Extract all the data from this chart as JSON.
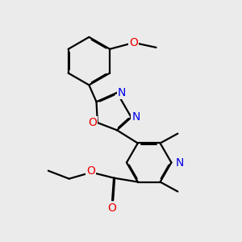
{
  "bg_color": "#ebebeb",
  "bond_color": "#000000",
  "N_color": "#0000ee",
  "O_color": "#ee0000",
  "line_width": 1.6,
  "dbo": 0.012,
  "font_size": 10,
  "fig_size": [
    3.0,
    3.0
  ],
  "dpi": 100,
  "xlim": [
    0,
    3.0
  ],
  "ylim": [
    0,
    3.0
  ]
}
